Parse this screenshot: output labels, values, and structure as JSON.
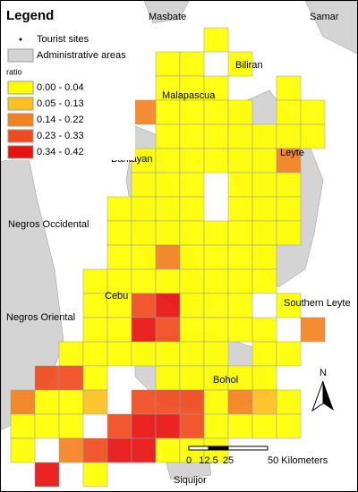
{
  "legend": {
    "title": "Legend",
    "sites": "Tourist sites",
    "admin": "Administrative areas",
    "field": "ratio",
    "classes": [
      {
        "label": "0.00 - 0.04",
        "color": "#ffff00"
      },
      {
        "label": "0.05 - 0.13",
        "color": "#ffc020"
      },
      {
        "label": "0.14 - 0.22",
        "color": "#f58220"
      },
      {
        "label": "0.23 - 0.33",
        "color": "#f04a1e"
      },
      {
        "label": "0.34 - 0.42",
        "color": "#e81010"
      }
    ]
  },
  "places": [
    "Masbate",
    "Samar",
    "Biliran",
    "Malapascua",
    "Bantayan",
    "Leyte",
    "Negros Occidental",
    "Cebu",
    "Negros Oriental",
    "Southern Leyte",
    "Bohol",
    "Siquijor"
  ],
  "scale": {
    "ticks": [
      "0",
      "12.5",
      "25",
      "50 Kilometers"
    ]
  },
  "north": "N"
}
